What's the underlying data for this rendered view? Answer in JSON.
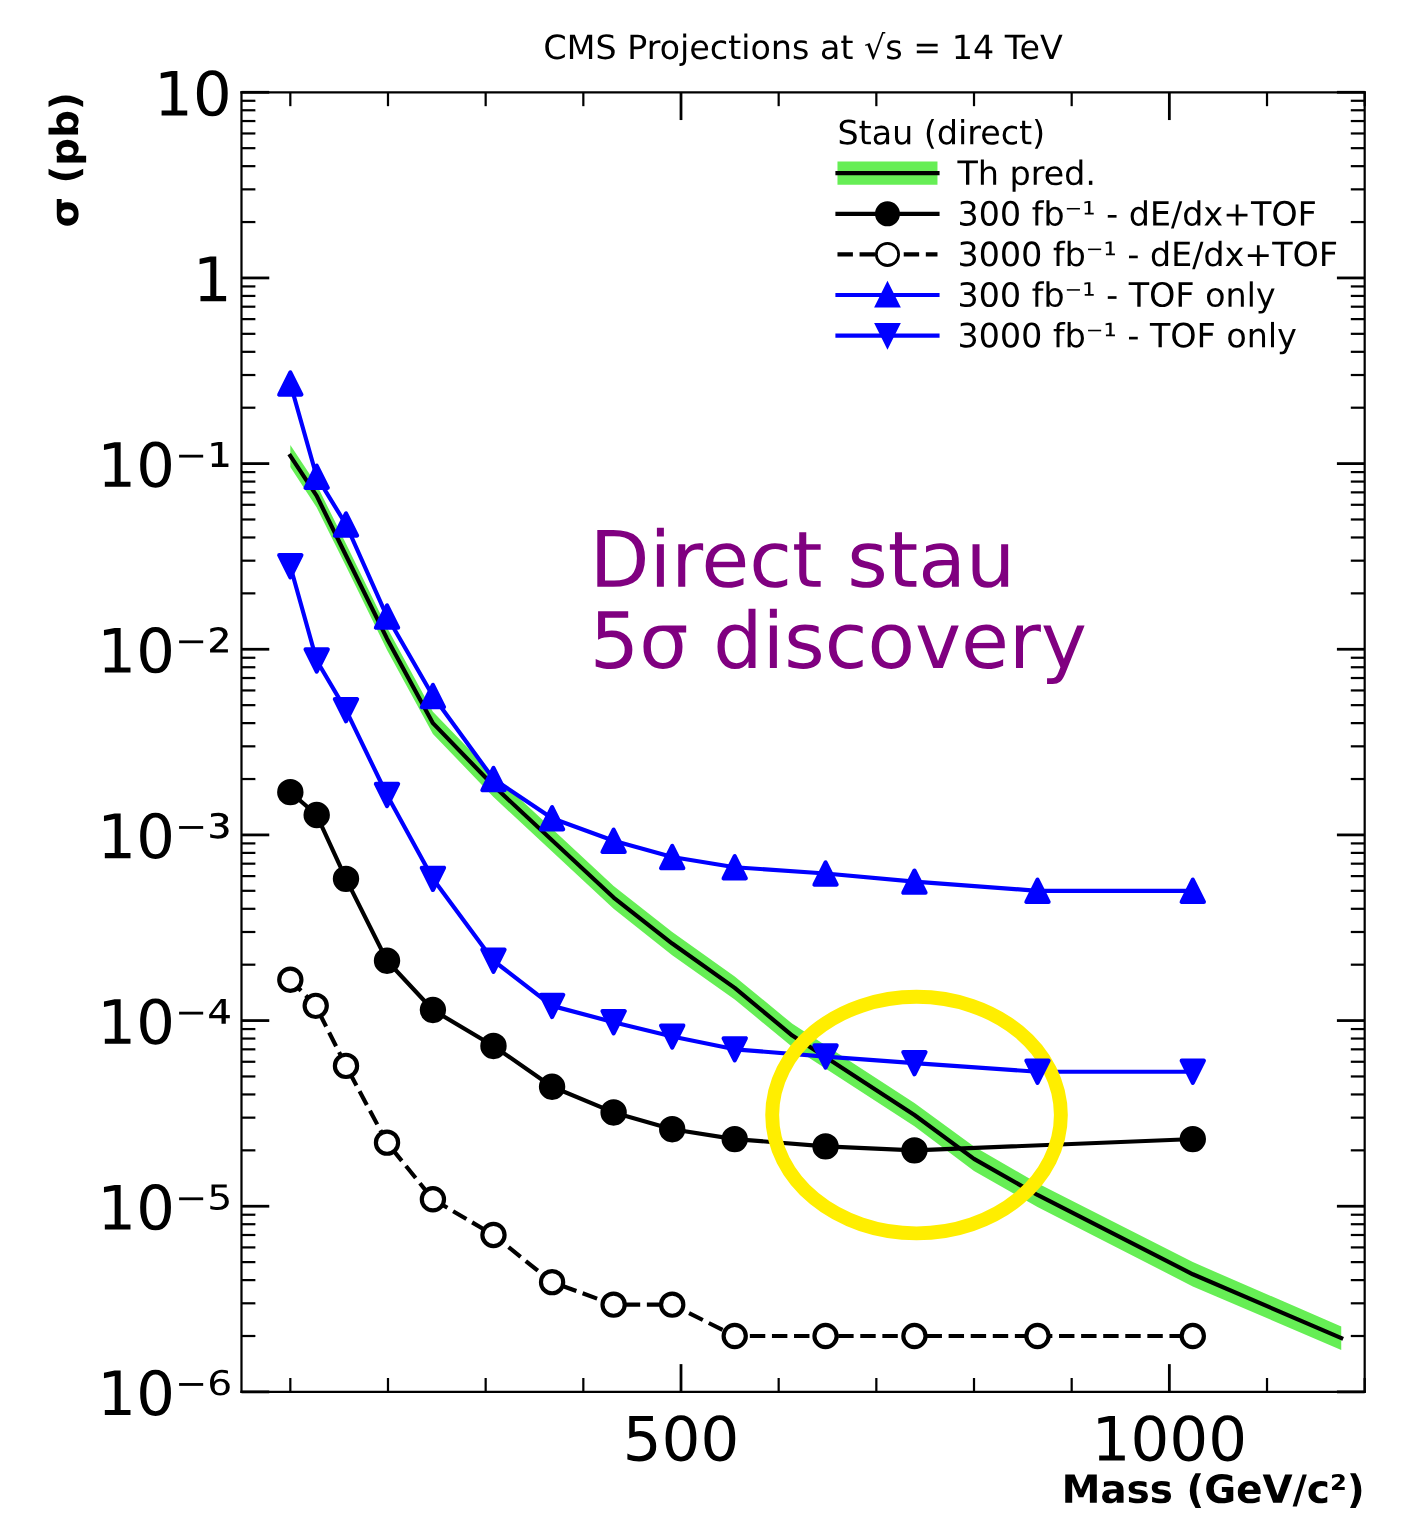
{
  "chart_data": {
    "type": "line",
    "title": "CMS Projections at √s = 14 TeV",
    "xlabel": "Mass (GeV/c²)",
    "ylabel": "σ (pb)",
    "legend_title": "Stau (direct)",
    "legend": "top right",
    "log": "y",
    "grid": false,
    "xlim": [
      50,
      1200
    ],
    "xticks": [
      500,
      1000
    ],
    "ylim": [
      1e-06,
      10
    ],
    "yticks": [
      {
        "value": 1e-06,
        "label": "10⁻⁶"
      },
      {
        "value": 1e-05,
        "label": "10⁻⁵"
      },
      {
        "value": 0.0001,
        "label": "10⁻⁴"
      },
      {
        "value": 0.001,
        "label": "10⁻³"
      },
      {
        "value": 0.01,
        "label": "10⁻²"
      },
      {
        "value": 0.1,
        "label": "10⁻¹"
      },
      1,
      10
    ],
    "annotations": [
      "Direct stau\n5σ discovery"
    ],
    "series": [
      {
        "name": "Th pred.",
        "color": "#000000",
        "marker": "none",
        "line_style": "solid",
        "x": [
          100,
          127,
          157,
          199,
          246,
          308,
          431,
          491,
          555,
          614,
          739,
          800,
          865,
          1024,
          1176
        ],
        "values": [
          0.11,
          0.067,
          0.032,
          0.0114,
          0.004,
          0.00184,
          0.00046,
          0.00026,
          0.00015,
          8.3e-05,
          3.1e-05,
          1.8e-05,
          1.15e-05,
          4.3e-06,
          1.95e-06
        ],
        "lower": [
          0.096,
          0.058,
          0.028,
          0.0099,
          0.0035,
          0.0016,
          0.0004,
          0.000225,
          0.00013,
          7.2e-05,
          2.7e-05,
          1.55e-05,
          9.9e-06,
          3.7e-06,
          1.68e-06
        ],
        "upper": [
          0.126,
          0.077,
          0.037,
          0.0131,
          0.0046,
          0.00212,
          0.00053,
          0.0003,
          0.000173,
          9.6e-05,
          3.6e-05,
          2.1e-05,
          1.33e-05,
          5e-06,
          2.25e-06
        ]
      },
      {
        "name": "300 fb⁻¹ - dE/dx+TOF",
        "color": "#000000",
        "marker": "circle",
        "line_style": "solid",
        "x": [
          100,
          127,
          157,
          199,
          246,
          308,
          368,
          431,
          491,
          555,
          648,
          739,
          1024
        ],
        "values": [
          0.0017,
          0.00128,
          0.00058,
          0.00021,
          0.000114,
          7.3e-05,
          4.4e-05,
          3.2e-05,
          2.6e-05,
          2.3e-05,
          2.1e-05,
          2e-05,
          2.3e-05
        ]
      },
      {
        "name": "3000 fb⁻¹ - dE/dx+TOF",
        "color": "#000000",
        "marker": "circle",
        "line_style": "dashed",
        "x": [
          100,
          126,
          157,
          199,
          246,
          308,
          368,
          431,
          491,
          555,
          648,
          739,
          865,
          1024
        ],
        "values": [
          0.000166,
          0.00012,
          5.7e-05,
          2.2e-05,
          1.09e-05,
          7e-06,
          3.9e-06,
          2.95e-06,
          2.95e-06,
          2e-06,
          2e-06,
          2e-06,
          2e-06,
          2e-06
        ]
      },
      {
        "name": "300 fb⁻¹ - TOF only",
        "color": "#0000ff",
        "marker": "triangle",
        "line_style": "solid",
        "x": [
          100,
          127,
          157,
          199,
          246,
          308,
          368,
          431,
          491,
          555,
          648,
          739,
          865,
          1024
        ],
        "values": [
          0.27,
          0.085,
          0.047,
          0.015,
          0.0056,
          0.002,
          0.00123,
          0.00093,
          0.00076,
          0.00067,
          0.00062,
          0.00056,
          0.0005,
          0.0005
        ]
      },
      {
        "name": "3000 fb⁻¹ - TOF only",
        "color": "#0000ff",
        "marker": "triangle",
        "line_style": "solid",
        "x": [
          100,
          127,
          157,
          199,
          246,
          308,
          368,
          431,
          491,
          555,
          648,
          739,
          865,
          1024
        ],
        "values": [
          0.028,
          0.0087,
          0.0047,
          0.00164,
          0.00058,
          0.00021,
          0.00012,
          9.8e-05,
          8.2e-05,
          7e-05,
          6.4e-05,
          5.9e-05,
          5.3e-05,
          5.3e-05
        ]
      }
    ]
  }
}
